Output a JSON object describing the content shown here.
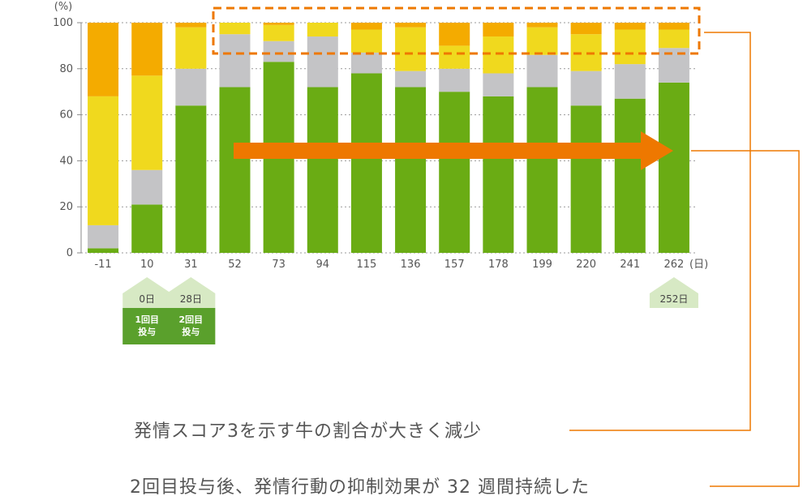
{
  "colors": {
    "green": "#6aac14",
    "gray": "#c4c4c6",
    "yellow": "#f0d91e",
    "orange": "#f4ab00",
    "arrow": "#ee7800",
    "marker_light": "#d7e9c4",
    "marker_dark": "#5aa02c"
  },
  "chart_data": {
    "type": "bar",
    "stacked": true,
    "unit_label": "(%)",
    "x_unit_label": "(日)",
    "ylim": [
      0,
      100
    ],
    "yticks": [
      0,
      20,
      40,
      60,
      80,
      100
    ],
    "categories": [
      "-11",
      "10",
      "31",
      "52",
      "73",
      "94",
      "115",
      "136",
      "157",
      "178",
      "199",
      "220",
      "241",
      "262"
    ],
    "series": [
      {
        "color_key": "green",
        "values": [
          2,
          21,
          64,
          72,
          83,
          72,
          78,
          72,
          70,
          68,
          72,
          64,
          67,
          74
        ]
      },
      {
        "color_key": "gray",
        "values": [
          10,
          15,
          16,
          23,
          9,
          22,
          9,
          7,
          10,
          10,
          14,
          15,
          15,
          15
        ]
      },
      {
        "color_key": "yellow",
        "values": [
          56,
          41,
          18,
          5,
          7,
          6,
          10,
          19,
          10,
          16,
          12,
          16,
          15,
          8
        ]
      },
      {
        "color_key": "orange",
        "values": [
          32,
          23,
          2,
          0,
          1,
          0,
          3,
          2,
          10,
          6,
          2,
          5,
          3,
          3
        ]
      }
    ],
    "markers": [
      {
        "category": "10",
        "top": "0日",
        "bottom": [
          "1回目",
          "投与"
        ]
      },
      {
        "category": "31",
        "top": "28日",
        "bottom": [
          "2回目",
          "投与"
        ]
      },
      {
        "category": "262",
        "top": "252日",
        "bottom": []
      }
    ]
  },
  "annotations": [
    "発情スコア3を示す牛の割合が大きく減少",
    "2回目投与後、発情行動の抑制効果が 32 週間持続した"
  ]
}
